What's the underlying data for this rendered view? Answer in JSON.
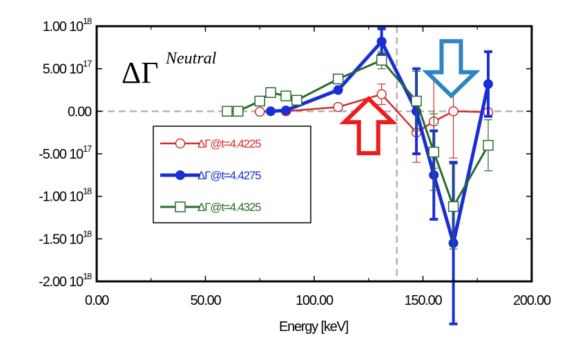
{
  "chart_data": {
    "type": "line",
    "title": "ΔΓ",
    "title_superscript": "Neutral",
    "xlabel": "Energy [keV]",
    "ylabel": "",
    "xlim": [
      0,
      200
    ],
    "ylim": [
      -2e+18,
      1e+18
    ],
    "x_ticks": [
      {
        "value": 0,
        "label": "0.00"
      },
      {
        "value": 50,
        "label": "50.00"
      },
      {
        "value": 100,
        "label": "100.00"
      },
      {
        "value": 150,
        "label": "150.00"
      },
      {
        "value": 200,
        "label": "200.00"
      }
    ],
    "y_ticks": [
      {
        "value": 1e+18,
        "base": "1.00 10",
        "exp": "18"
      },
      {
        "value": 5e+17,
        "base": "5.00 10",
        "exp": "17"
      },
      {
        "value": 0,
        "base": "0.00",
        "exp": ""
      },
      {
        "value": -5e+17,
        "base": "-5.00 10",
        "exp": "17"
      },
      {
        "value": -1e+18,
        "base": "-1.00 10",
        "exp": "18"
      },
      {
        "value": -1.5e+18,
        "base": "-1.50 10",
        "exp": "18"
      },
      {
        "value": -2e+18,
        "base": "-2.00 10",
        "exp": "18"
      }
    ],
    "reference_lines": {
      "y": 0,
      "x": 138
    },
    "legend_position": "left",
    "series": [
      {
        "name": "ΔΓ@t=4.4225",
        "color": "#d42a2a",
        "marker": "open-circle",
        "points": [
          {
            "x": 75,
            "y": -5000000000000000.0,
            "err": 0
          },
          {
            "x": 87,
            "y": 0.0,
            "err": 0
          },
          {
            "x": 111,
            "y": 5e+16,
            "err": 0
          },
          {
            "x": 131,
            "y": 2e+17,
            "err": 1.2e+17
          },
          {
            "x": 147,
            "y": -2.5e+17,
            "err": 3.5e+17
          },
          {
            "x": 155,
            "y": -1.2e+17,
            "err": 5.5e+17
          },
          {
            "x": 164,
            "y": 0.0,
            "err": 5.5e+17
          },
          {
            "x": 180,
            "y": -1e+16,
            "err": 0
          }
        ]
      },
      {
        "name": "ΔΓ@t=4.4275",
        "color": "#1a2ed6",
        "marker": "filled-circle",
        "points": [
          {
            "x": 80,
            "y": 0.0,
            "err": 0
          },
          {
            "x": 87,
            "y": 1e+16,
            "err": 0
          },
          {
            "x": 111,
            "y": 2.5e+17,
            "err": 0
          },
          {
            "x": 131,
            "y": 8.2e+17,
            "err": 1.5e+17
          },
          {
            "x": 147,
            "y": 0.0,
            "err": 5e+17
          },
          {
            "x": 155,
            "y": -7.5e+17,
            "err": 5.2e+17
          },
          {
            "x": 164,
            "y": -1.55e+18,
            "err": 9.5e+17
          },
          {
            "x": 180,
            "y": 3.2e+17,
            "err": 3.8e+17
          }
        ]
      },
      {
        "name": "ΔΓ@t=4.4325",
        "color": "#256b2a",
        "marker": "open-square",
        "points": [
          {
            "x": 60,
            "y": 0.0,
            "err": 0
          },
          {
            "x": 65,
            "y": 0.0,
            "err": 0
          },
          {
            "x": 75,
            "y": 1.2e+17,
            "err": 0
          },
          {
            "x": 80,
            "y": 2.2e+17,
            "err": 0
          },
          {
            "x": 87,
            "y": 1.8e+17,
            "err": 0
          },
          {
            "x": 92,
            "y": 1.3e+17,
            "err": 0
          },
          {
            "x": 111,
            "y": 3.8e+17,
            "err": 0
          },
          {
            "x": 131,
            "y": 6e+17,
            "err": 1e+17
          },
          {
            "x": 147,
            "y": 1.2e+17,
            "err": 3.5e+17
          },
          {
            "x": 155,
            "y": -4.8e+17,
            "err": 4.5e+17
          },
          {
            "x": 164,
            "y": -1.12e+18,
            "err": 5e+17
          },
          {
            "x": 180,
            "y": -4e+17,
            "err": 3e+17
          }
        ]
      }
    ],
    "annotations": [
      {
        "type": "arrow",
        "direction": "up",
        "color": "#ee1c1c",
        "x": 125,
        "y": -2.5e+17
      },
      {
        "type": "arrow",
        "direction": "down",
        "color": "#2e86c1",
        "x": 163,
        "y": 5.8e+17
      }
    ]
  }
}
